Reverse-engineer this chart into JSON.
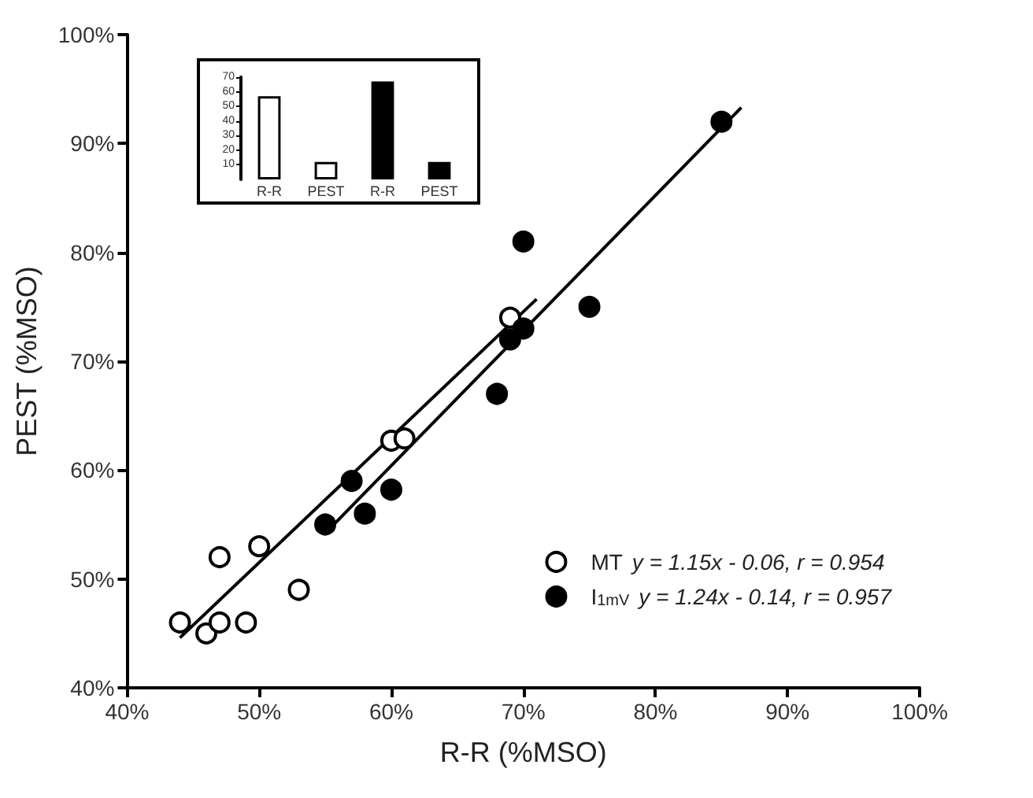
{
  "chart_data": [
    {
      "type": "scatter",
      "xlabel": "R-R (%MSO)",
      "ylabel": "PEST (%MSO)",
      "series": [
        {
          "name": "MT",
          "color": "#ffffff",
          "marker": "circle",
          "x": [
            44,
            46,
            47,
            47,
            49,
            50,
            53,
            60,
            61,
            69
          ],
          "values": [
            46,
            45,
            46,
            52,
            46,
            53,
            49,
            62.7,
            62.9,
            74
          ]
        },
        {
          "name": "I$_{1mV}$",
          "color": "#000000",
          "marker": "circle",
          "x": [
            55,
            57,
            58,
            60,
            68,
            69,
            70,
            70,
            75,
            85
          ],
          "values": [
            55,
            59,
            56,
            58.2,
            67,
            72,
            73,
            81,
            75,
            92
          ]
        },
        {
          "type": "line",
          "color": "#000000",
          "x": [
            44,
            71
          ],
          "values": [
            44.6,
            75.7
          ],
          "marker": "none"
        },
        {
          "type": "line",
          "color": "#000000",
          "x": [
            55,
            86.5
          ],
          "values": [
            54.2,
            93.3
          ],
          "marker": "none"
        }
      ],
      "annotations": [
        "y = 1.15x - 0.06, r = 0.954",
        "y = 1.24x - 0.14, r = 0.957"
      ],
      "xlim": [
        40,
        100
      ],
      "ylim": [
        40,
        100
      ],
      "xticks": [
        {
          "value": 40,
          "label": "40%"
        },
        {
          "value": 50,
          "label": "50%"
        },
        {
          "value": 60,
          "label": "60%"
        },
        {
          "value": 70,
          "label": "70%"
        },
        {
          "value": 80,
          "label": "80%"
        },
        {
          "value": 90,
          "label": "90%"
        },
        {
          "value": 100,
          "label": "100%"
        }
      ],
      "yticks": [
        {
          "value": 40,
          "label": "40%"
        },
        {
          "value": 50,
          "label": "50%"
        },
        {
          "value": 60,
          "label": "60%"
        },
        {
          "value": 70,
          "label": "70%"
        },
        {
          "value": 80,
          "label": "80%"
        },
        {
          "value": 90,
          "label": "90%"
        },
        {
          "value": 100,
          "label": "100%"
        }
      ],
      "legend": "bottom right"
    },
    {
      "type": "bar",
      "categories": [
        "R-R",
        "PEST",
        "R-R",
        "PEST"
      ],
      "values": [
        57,
        12,
        67,
        12
      ],
      "colors": [
        "#ffffff",
        "#ffffff",
        "#000000",
        "#000000"
      ],
      "ylim": [
        0,
        70
      ],
      "yticks": [
        10,
        20,
        30,
        40,
        50,
        60,
        70
      ]
    }
  ]
}
